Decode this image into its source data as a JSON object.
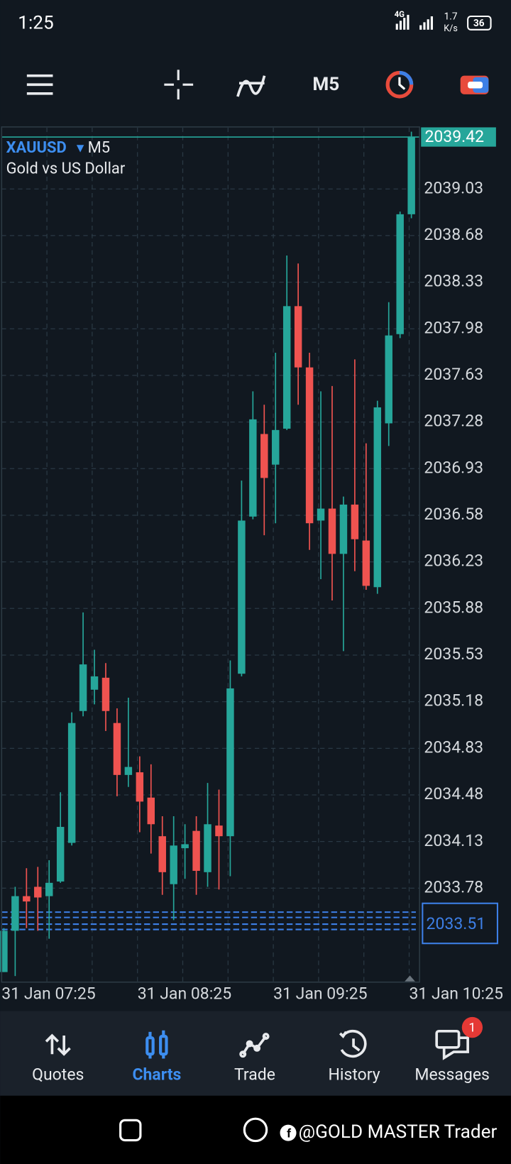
{
  "status_bar": {
    "time": "1:25",
    "network": "4G",
    "speed": "1.7",
    "speed_unit": "K/s",
    "battery": "36"
  },
  "toolbar": {
    "timeframe": "M5"
  },
  "chart_data": {
    "type": "candlestick",
    "symbol": "XAUUSD",
    "timeframe": "M5",
    "subtitle": "Gold vs US Dollar",
    "categories": [
      "31 Jan 07:25",
      null,
      null,
      null,
      null,
      null,
      null,
      null,
      null,
      null,
      null,
      null,
      "31 Jan 08:25",
      null,
      null,
      null,
      null,
      null,
      null,
      null,
      null,
      null,
      null,
      null,
      "31 Jan 09:25",
      null,
      null,
      null,
      null,
      null,
      null,
      null,
      null,
      null,
      null,
      null,
      "31 Jan 10:25"
    ],
    "open": [
      2033.15,
      2033.46,
      2033.72,
      2033.79,
      2033.72,
      2033.83,
      2034.12,
      2035.11,
      2035.27,
      2035.36,
      2035.02,
      2034.63,
      2034.65,
      2034.46,
      2034.17,
      2033.81,
      2034.08,
      2034.21,
      2033.9,
      2034.25,
      2034.17,
      2035.39,
      2036.57,
      2037.19,
      2036.96,
      2037.23,
      2038.15,
      2037.69,
      2036.54,
      2036.63,
      2036.29,
      2036.66,
      2036.39,
      2036.04,
      2037.27,
      2037.94,
      2038.84
    ],
    "high": [
      2033.48,
      2033.79,
      2033.93,
      2033.94,
      2033.99,
      2034.5,
      2035.1,
      2035.85,
      2035.57,
      2035.47,
      2035.13,
      2035.21,
      2034.77,
      2034.71,
      2034.32,
      2034.32,
      2034.26,
      2034.32,
      2034.57,
      2034.52,
      2035.49,
      2036.84,
      2037.51,
      2037.41,
      2037.8,
      2038.53,
      2038.47,
      2037.8,
      2037.51,
      2037.55,
      2036.72,
      2037.75,
      2037.12,
      2037.44,
      2038.18,
      2038.86,
      2039.46
    ],
    "low": [
      2033.15,
      2033.12,
      2033.48,
      2033.46,
      2033.4,
      2033.82,
      2034.1,
      2035.07,
      2035.16,
      2034.96,
      2034.47,
      2034.54,
      2034.2,
      2034.04,
      2033.73,
      2033.54,
      2033.85,
      2033.73,
      2033.79,
      2033.77,
      2033.87,
      2035.37,
      2036.55,
      2036.43,
      2036.52,
      2037.22,
      2037.41,
      2036.32,
      2036.1,
      2035.94,
      2035.56,
      2036.16,
      2036.02,
      2035.99,
      2037.1,
      2037.91,
      2038.81
    ],
    "close": [
      2033.46,
      2033.72,
      2033.68,
      2033.71,
      2033.82,
      2034.24,
      2035.02,
      2035.46,
      2035.37,
      2035.11,
      2034.63,
      2034.69,
      2034.43,
      2034.26,
      2033.9,
      2034.1,
      2034.11,
      2033.91,
      2034.26,
      2034.17,
      2035.28,
      2036.54,
      2037.3,
      2036.86,
      2037.22,
      2038.15,
      2037.69,
      2036.52,
      2036.63,
      2036.29,
      2036.66,
      2036.4,
      2036.05,
      2037.39,
      2037.93,
      2038.84,
      2039.42
    ],
    "ylim": [
      2033.08,
      2039.49
    ],
    "yticks": [
      2039.03,
      2038.68,
      2038.33,
      2037.98,
      2037.63,
      2037.28,
      2036.93,
      2036.58,
      2036.23,
      2035.88,
      2035.53,
      2035.18,
      2034.83,
      2034.48,
      2034.13,
      2033.78
    ],
    "last_price": 2039.42,
    "order_lines": [
      2033.6,
      2033.56,
      2033.51,
      2033.47
    ],
    "colors": {
      "up": "#26a69a",
      "down": "#ef5350",
      "order": "#3d7fe6"
    },
    "grid": true
  },
  "nav": {
    "items": [
      "Quotes",
      "Charts",
      "Trade",
      "History",
      "Messages"
    ],
    "active": 1,
    "badge": "1"
  },
  "watermark": "@GOLD MASTER Trader"
}
